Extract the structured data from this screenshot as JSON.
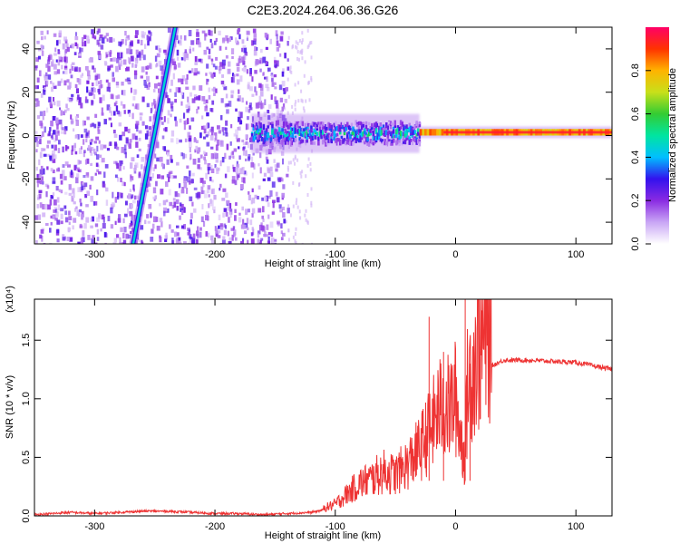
{
  "figure": {
    "title": "C2E3.2024.264.06.36.G26"
  },
  "chart_data": [
    {
      "type": "heatmap",
      "xlabel": "Height of straight line (km)",
      "ylabel": "Frequency (Hz)",
      "xlim": [
        -350,
        130
      ],
      "ylim": [
        -50,
        50
      ],
      "xticks": [
        -300,
        -200,
        -100,
        0,
        100
      ],
      "xtick_labels": [
        "-300",
        "-200",
        "-100",
        "0",
        "100"
      ],
      "yticks": [
        -40,
        -20,
        0,
        20,
        40
      ],
      "ytick_labels": [
        "-40",
        "-20",
        "0",
        "20",
        "40"
      ],
      "colorbar": {
        "label": "Normalized spectral amplitude",
        "range": [
          0,
          1
        ],
        "ticks": [
          0,
          0.2,
          0.4,
          0.6,
          0.8
        ],
        "tick_labels": [
          "0.0",
          "0.2",
          "0.4",
          "0.6",
          "0.8"
        ],
        "colors": [
          "#ffffff",
          "#c9a6f5",
          "#8a2be2",
          "#3311ee",
          "#00bfff",
          "#00e5a0",
          "#33cc33",
          "#c8e01a",
          "#ffb300",
          "#ff3300",
          "#ff0066"
        ]
      },
      "features": [
        {
          "kind": "noise-region",
          "x": [
            -350,
            -140
          ],
          "level": 0.2
        },
        {
          "kind": "signal-band",
          "x": [
            -170,
            -30
          ],
          "center_hz": 1,
          "halfwidth_hz": 5,
          "level": 0.45
        },
        {
          "kind": "signal-band",
          "x": [
            -30,
            130
          ],
          "center_hz": 1.5,
          "halfwidth_hz": 1.5,
          "level": 0.85
        },
        {
          "kind": "alias-line",
          "from": [
            -268,
            -50
          ],
          "to": [
            -233,
            50
          ],
          "level": 0.45
        }
      ]
    },
    {
      "type": "line",
      "xlabel": "Height of straight line (km)",
      "ylabel": "SNR (10 * v/v)",
      "y_multiplier": "(x10⁴)",
      "xlim": [
        -350,
        130
      ],
      "ylim": [
        0,
        1.85
      ],
      "xticks": [
        -300,
        -200,
        -100,
        0,
        100
      ],
      "xtick_labels": [
        "-300",
        "-200",
        "-100",
        "0",
        "100"
      ],
      "yticks": [
        0,
        0.5,
        1.0,
        1.5
      ],
      "ytick_labels": [
        "0.0",
        "0.5",
        "1.0",
        "1.5"
      ],
      "color": "#ee3333",
      "x": [
        -350,
        -320,
        -300,
        -280,
        -260,
        -240,
        -220,
        -200,
        -180,
        -160,
        -140,
        -120,
        -110,
        -100,
        -90,
        -80,
        -70,
        -60,
        -50,
        -40,
        -30,
        -20,
        -15,
        -10,
        -5,
        0,
        5,
        8,
        10,
        15,
        20,
        30,
        40,
        60,
        80,
        100,
        115,
        130
      ],
      "y": [
        0.01,
        0.03,
        0.02,
        0.03,
        0.04,
        0.04,
        0.03,
        0.02,
        0.02,
        0.01,
        0.02,
        0.03,
        0.05,
        0.08,
        0.15,
        0.22,
        0.25,
        0.3,
        0.28,
        0.35,
        0.45,
        0.6,
        0.7,
        0.75,
        0.72,
        0.8,
        0.5,
        0.4,
        0.9,
        1.05,
        1.15,
        1.28,
        1.33,
        1.33,
        1.32,
        1.31,
        1.28,
        1.25
      ],
      "spikes": [
        {
          "x": -22,
          "y": 1.7
        },
        {
          "x": -10,
          "y": 1.4
        },
        {
          "x": 8,
          "y": 1.85
        },
        {
          "x": 12,
          "y": 1.3
        }
      ]
    }
  ]
}
